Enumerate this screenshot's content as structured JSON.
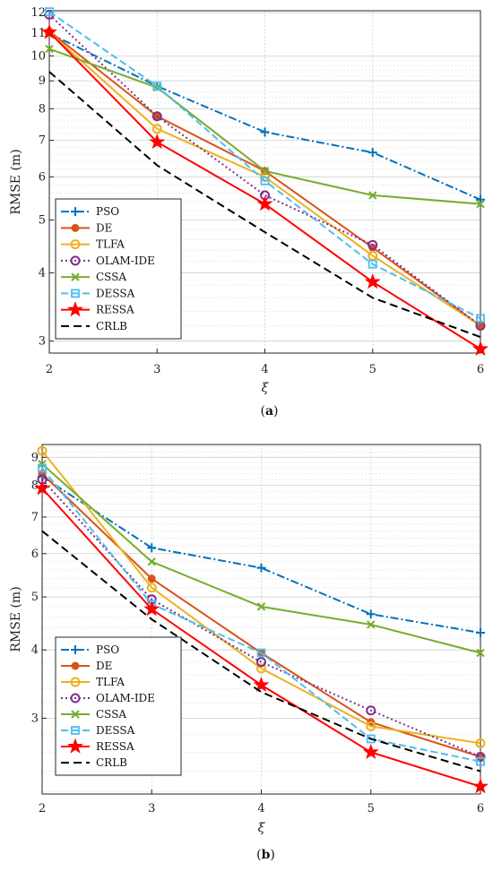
{
  "chart_data": [
    {
      "type": "line",
      "caption": "(a)",
      "xlabel": "ξ",
      "ylabel": "RMSE (m)",
      "yscale": "log",
      "x": [
        2,
        3,
        4,
        5,
        6
      ],
      "xlim": [
        2,
        6
      ],
      "ylim": [
        2.85,
        12.1
      ],
      "xticks": [
        "2",
        "3",
        "4",
        "5",
        "6"
      ],
      "yticks": [
        3,
        4,
        5,
        6,
        7,
        8,
        9,
        10,
        11,
        12
      ],
      "ytick_labels": [
        "3",
        "4",
        "5",
        "6",
        "7",
        "8",
        "9",
        "10",
        "11",
        "12"
      ],
      "grid": true,
      "legend_position": "bottom-left",
      "series": [
        {
          "name": "PSO",
          "values": [
            11.0,
            8.8,
            7.25,
            6.65,
            5.45
          ],
          "color": "#0072BD",
          "dash": "9,3,2,3",
          "marker": "plus"
        },
        {
          "name": "DE",
          "values": [
            11.1,
            7.75,
            6.15,
            4.45,
            3.2
          ],
          "color": "#D95319",
          "dash": "",
          "marker": "dot"
        },
        {
          "name": "TLFA",
          "values": [
            11.05,
            7.35,
            6.0,
            4.3,
            3.2
          ],
          "color": "#EDB120",
          "dash": "",
          "marker": "circle"
        },
        {
          "name": "OLAM-IDE",
          "values": [
            11.9,
            7.75,
            5.55,
            4.5,
            3.2
          ],
          "color": "#7E2F8E",
          "dash": "2,3",
          "marker": "circle"
        },
        {
          "name": "CSSA",
          "values": [
            10.3,
            8.75,
            6.15,
            5.55,
            5.35
          ],
          "color": "#77AC30",
          "dash": "",
          "marker": "x"
        },
        {
          "name": "DESSA",
          "values": [
            12.05,
            8.8,
            5.9,
            4.15,
            3.3
          ],
          "color": "#4DBEEE",
          "dash": "8,4",
          "marker": "square"
        },
        {
          "name": "RESSA",
          "values": [
            11.05,
            6.95,
            5.35,
            3.85,
            2.9
          ],
          "color": "#FF0000",
          "dash": "",
          "marker": "star"
        },
        {
          "name": "CRLB",
          "values": [
            9.35,
            6.3,
            4.75,
            3.6,
            3.05
          ],
          "color": "#000000",
          "dash": "9,5",
          "marker": "none"
        }
      ]
    },
    {
      "type": "line",
      "caption": "(b)",
      "xlabel": "ξ",
      "ylabel": "RMSE (m)",
      "yscale": "log",
      "x": [
        2,
        3,
        4,
        5,
        6
      ],
      "xlim": [
        2,
        6
      ],
      "ylim": [
        2.18,
        9.5
      ],
      "xticks": [
        "2",
        "3",
        "4",
        "5",
        "6"
      ],
      "yticks": [
        3,
        4,
        5,
        6,
        7,
        8,
        9
      ],
      "ytick_labels": [
        "3",
        "4",
        "5",
        "6",
        "7",
        "8",
        "9"
      ],
      "grid": true,
      "legend_position": "bottom-left",
      "series": [
        {
          "name": "PSO",
          "values": [
            8.3,
            6.15,
            5.65,
            4.65,
            4.3
          ],
          "color": "#0072BD",
          "dash": "9,3,2,3",
          "marker": "plus"
        },
        {
          "name": "DE",
          "values": [
            8.4,
            5.4,
            3.95,
            2.95,
            2.55
          ],
          "color": "#D95319",
          "dash": "",
          "marker": "dot"
        },
        {
          "name": "TLFA",
          "values": [
            9.25,
            5.2,
            3.7,
            2.9,
            2.7
          ],
          "color": "#EDB120",
          "dash": "",
          "marker": "circle"
        },
        {
          "name": "OLAM-IDE",
          "values": [
            8.2,
            4.95,
            3.8,
            3.1,
            2.55
          ],
          "color": "#7E2F8E",
          "dash": "2,3",
          "marker": "circle"
        },
        {
          "name": "CSSA",
          "values": [
            8.75,
            5.8,
            4.8,
            4.45,
            3.95
          ],
          "color": "#77AC30",
          "dash": "",
          "marker": "x"
        },
        {
          "name": "DESSA",
          "values": [
            8.6,
            4.85,
            3.95,
            2.75,
            2.5
          ],
          "color": "#4DBEEE",
          "dash": "8,4",
          "marker": "square"
        },
        {
          "name": "RESSA",
          "values": [
            7.9,
            4.75,
            3.45,
            2.6,
            2.25
          ],
          "color": "#FF0000",
          "dash": "",
          "marker": "star"
        },
        {
          "name": "CRLB",
          "values": [
            6.6,
            4.55,
            3.35,
            2.75,
            2.4
          ],
          "color": "#000000",
          "dash": "9,5",
          "marker": "none"
        }
      ]
    }
  ]
}
